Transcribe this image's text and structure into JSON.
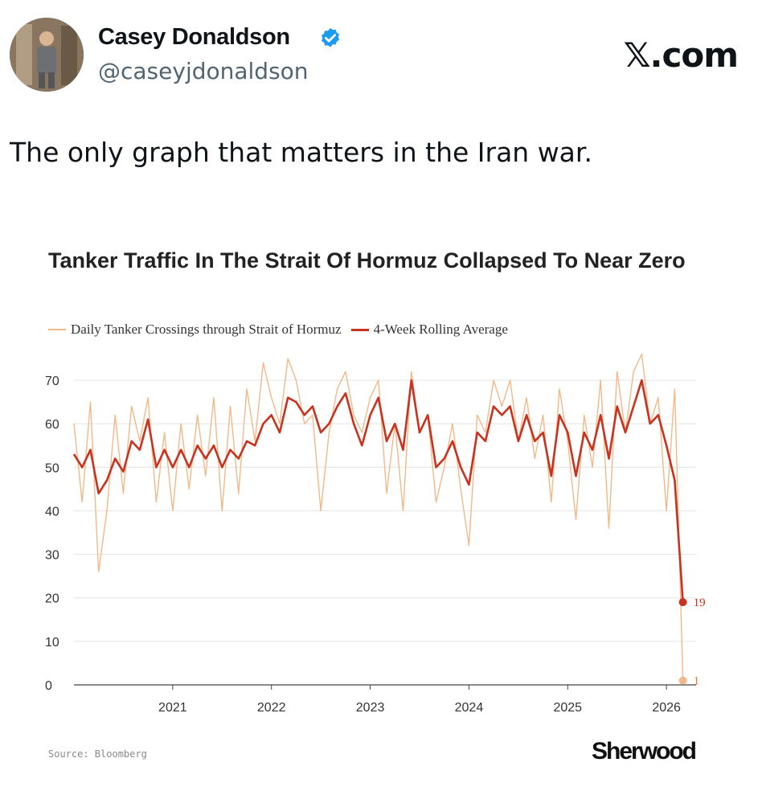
{
  "post": {
    "display_name": "Casey Donaldson",
    "handle": "@caseyjdonaldson",
    "brand": "𝕏.com",
    "text": "The only graph that matters in the Iran war.",
    "verified_color": "#1d9bf0",
    "verified_icon": "verified-badge-icon"
  },
  "chart_data": {
    "type": "line",
    "title": "Tanker Traffic In The Strait Of Hormuz Collapsed To Near Zero",
    "xlabel": "",
    "ylabel": "",
    "ylim": [
      0,
      75
    ],
    "yticks": [
      "0",
      "10",
      "20",
      "30",
      "40",
      "50",
      "60",
      "70"
    ],
    "xtick_labels": [
      "2021",
      "2022",
      "2023",
      "2024",
      "2025",
      "2026"
    ],
    "grid": true,
    "legend_position": "top",
    "series": [
      {
        "name": "Daily Tanker Crossings through Strait of Hormuz",
        "color": "#f1b98a",
        "x": [
          "2020-01",
          "2020-02",
          "2020-03",
          "2020-04",
          "2020-05",
          "2020-06",
          "2020-07",
          "2020-08",
          "2020-09",
          "2020-10",
          "2020-11",
          "2020-12",
          "2021-01",
          "2021-02",
          "2021-03",
          "2021-04",
          "2021-05",
          "2021-06",
          "2021-07",
          "2021-08",
          "2021-09",
          "2021-10",
          "2021-11",
          "2021-12",
          "2022-01",
          "2022-02",
          "2022-03",
          "2022-04",
          "2022-05",
          "2022-06",
          "2022-07",
          "2022-08",
          "2022-09",
          "2022-10",
          "2022-11",
          "2022-12",
          "2023-01",
          "2023-02",
          "2023-03",
          "2023-04",
          "2023-05",
          "2023-06",
          "2023-07",
          "2023-08",
          "2023-09",
          "2023-10",
          "2023-11",
          "2023-12",
          "2024-01",
          "2024-02",
          "2024-03",
          "2024-04",
          "2024-05",
          "2024-06",
          "2024-07",
          "2024-08",
          "2024-09",
          "2024-10",
          "2024-11",
          "2024-12",
          "2025-01",
          "2025-02",
          "2025-03",
          "2025-04",
          "2025-05",
          "2025-06",
          "2025-07",
          "2025-08",
          "2025-09",
          "2025-10",
          "2025-11",
          "2025-12",
          "2026-01",
          "2026-02",
          "2026-03"
        ],
        "values": [
          60,
          42,
          65,
          26,
          40,
          62,
          44,
          64,
          56,
          66,
          42,
          58,
          40,
          60,
          45,
          62,
          48,
          66,
          40,
          64,
          44,
          68,
          56,
          74,
          66,
          60,
          75,
          70,
          60,
          62,
          40,
          58,
          68,
          72,
          62,
          58,
          66,
          70,
          44,
          60,
          40,
          72,
          58,
          62,
          42,
          50,
          60,
          45,
          32,
          62,
          58,
          70,
          64,
          70,
          56,
          66,
          52,
          62,
          42,
          68,
          56,
          38,
          62,
          50,
          70,
          36,
          72,
          58,
          72,
          76,
          60,
          66,
          40,
          68,
          1
        ]
      },
      {
        "name": "4-Week Rolling Average",
        "color": "#c8321f",
        "x": [
          "2020-01",
          "2020-02",
          "2020-03",
          "2020-04",
          "2020-05",
          "2020-06",
          "2020-07",
          "2020-08",
          "2020-09",
          "2020-10",
          "2020-11",
          "2020-12",
          "2021-01",
          "2021-02",
          "2021-03",
          "2021-04",
          "2021-05",
          "2021-06",
          "2021-07",
          "2021-08",
          "2021-09",
          "2021-10",
          "2021-11",
          "2021-12",
          "2022-01",
          "2022-02",
          "2022-03",
          "2022-04",
          "2022-05",
          "2022-06",
          "2022-07",
          "2022-08",
          "2022-09",
          "2022-10",
          "2022-11",
          "2022-12",
          "2023-01",
          "2023-02",
          "2023-03",
          "2023-04",
          "2023-05",
          "2023-06",
          "2023-07",
          "2023-08",
          "2023-09",
          "2023-10",
          "2023-11",
          "2023-12",
          "2024-01",
          "2024-02",
          "2024-03",
          "2024-04",
          "2024-05",
          "2024-06",
          "2024-07",
          "2024-08",
          "2024-09",
          "2024-10",
          "2024-11",
          "2024-12",
          "2025-01",
          "2025-02",
          "2025-03",
          "2025-04",
          "2025-05",
          "2025-06",
          "2025-07",
          "2025-08",
          "2025-09",
          "2025-10",
          "2025-11",
          "2025-12",
          "2026-01",
          "2026-02",
          "2026-03"
        ],
        "values": [
          53,
          50,
          54,
          44,
          47,
          52,
          49,
          56,
          54,
          61,
          50,
          54,
          50,
          54,
          50,
          55,
          52,
          55,
          50,
          54,
          52,
          56,
          55,
          60,
          62,
          58,
          66,
          65,
          62,
          64,
          58,
          60,
          64,
          67,
          60,
          55,
          62,
          66,
          56,
          60,
          54,
          70,
          58,
          62,
          50,
          52,
          56,
          50,
          46,
          58,
          56,
          64,
          62,
          64,
          56,
          62,
          56,
          58,
          48,
          62,
          58,
          48,
          58,
          54,
          62,
          52,
          64,
          58,
          64,
          70,
          60,
          62,
          55,
          47,
          19
        ]
      }
    ],
    "end_labels": [
      {
        "series": 1,
        "label": "19"
      },
      {
        "series": 0,
        "label": "1"
      }
    ]
  },
  "footer": {
    "source": "Source: Bloomberg",
    "logo": "Sherwood"
  }
}
